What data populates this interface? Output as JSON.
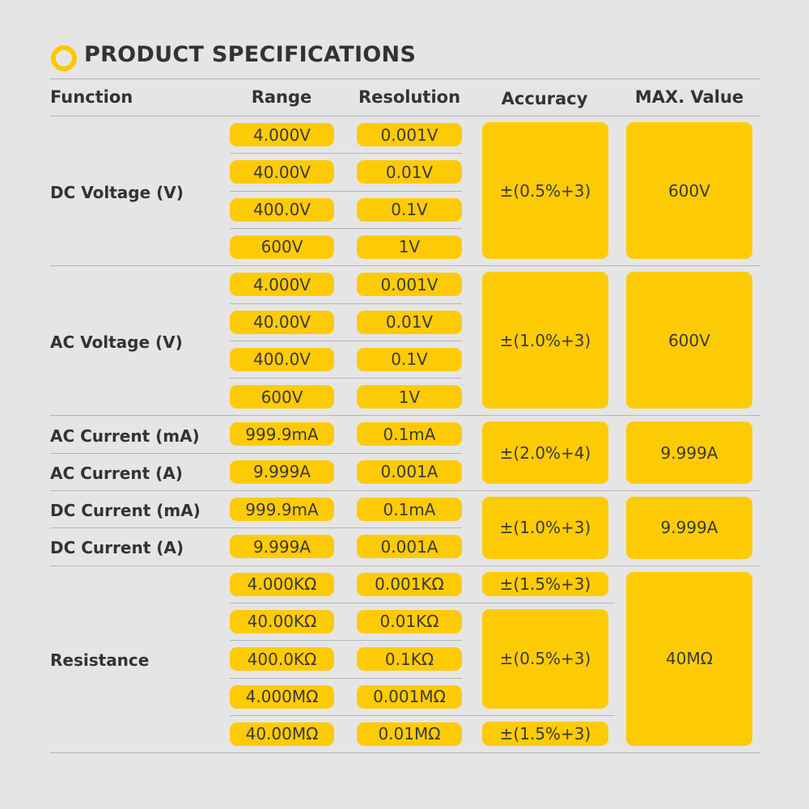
{
  "title": "PRODUCT SPECIFICATIONS",
  "headers": [
    "Function",
    "Range",
    "Resolution",
    "Accuracy",
    "MAX. Value"
  ],
  "groups": [
    {
      "functions": [
        "DC Voltage (V)"
      ],
      "max": "600V",
      "blocks": [
        {
          "accuracy": "±(0.5%+3)",
          "rows": [
            {
              "range": "4.000V",
              "resolution": "0.001V"
            },
            {
              "range": "40.00V",
              "resolution": "0.01V"
            },
            {
              "range": "400.0V",
              "resolution": "0.1V"
            },
            {
              "range": "600V",
              "resolution": "1V"
            }
          ]
        }
      ]
    },
    {
      "functions": [
        "AC Voltage (V)"
      ],
      "max": "600V",
      "blocks": [
        {
          "accuracy": "±(1.0%+3)",
          "rows": [
            {
              "range": "4.000V",
              "resolution": "0.001V"
            },
            {
              "range": "40.00V",
              "resolution": "0.01V"
            },
            {
              "range": "400.0V",
              "resolution": "0.1V"
            },
            {
              "range": "600V",
              "resolution": "1V"
            }
          ]
        }
      ]
    },
    {
      "functions": [
        "AC Current (mA)",
        "AC Current (A)"
      ],
      "max": "9.999A",
      "blocks": [
        {
          "accuracy": "±(2.0%+4)",
          "rows": [
            {
              "range": "999.9mA",
              "resolution": "0.1mA"
            },
            {
              "range": "9.999A",
              "resolution": "0.001A"
            }
          ]
        }
      ]
    },
    {
      "functions": [
        "DC Current (mA)",
        "DC Current (A)"
      ],
      "max": "9.999A",
      "blocks": [
        {
          "accuracy": "±(1.0%+3)",
          "rows": [
            {
              "range": "999.9mA",
              "resolution": "0.1mA"
            },
            {
              "range": "9.999A",
              "resolution": "0.001A"
            }
          ]
        }
      ]
    },
    {
      "functions": [
        "Resistance"
      ],
      "max": "40MΩ",
      "blocks": [
        {
          "accuracy": "±(1.5%+3)",
          "rows": [
            {
              "range": "4.000KΩ",
              "resolution": "0.001KΩ"
            }
          ]
        },
        {
          "accuracy": "±(0.5%+3)",
          "rows": [
            {
              "range": "40.00KΩ",
              "resolution": "0.01KΩ"
            },
            {
              "range": "400.0KΩ",
              "resolution": "0.1KΩ"
            },
            {
              "range": "4.000MΩ",
              "resolution": "0.001MΩ"
            }
          ]
        },
        {
          "accuracy": "±(1.5%+3)",
          "rows": [
            {
              "range": "40.00MΩ",
              "resolution": "0.01MΩ"
            }
          ]
        }
      ]
    }
  ]
}
